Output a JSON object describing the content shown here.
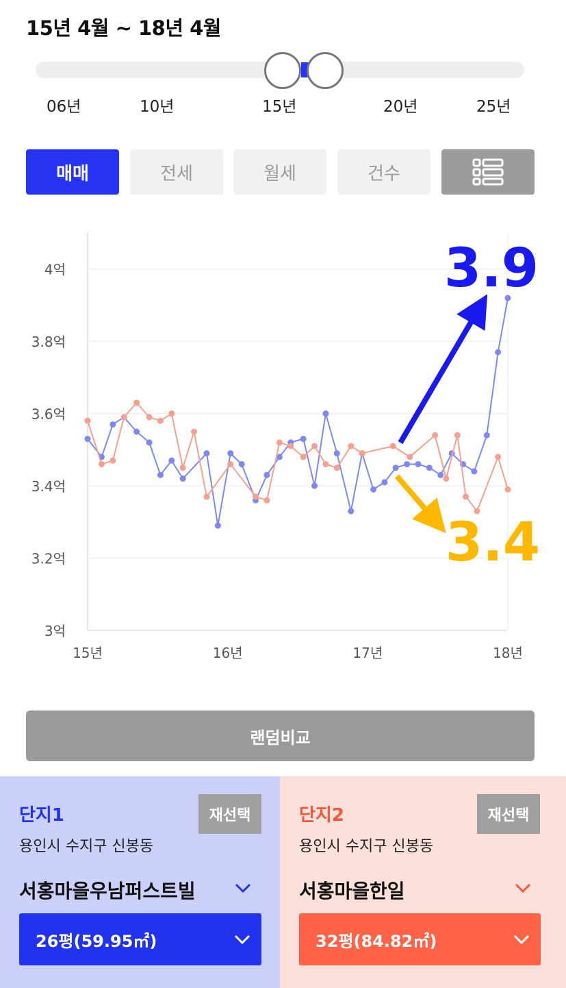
{
  "range": {
    "title": "15년 4월 ~ 18년 4월",
    "ticks": [
      "06년",
      "10년",
      "15년",
      "20년",
      "25년"
    ]
  },
  "tabs": [
    {
      "label": "매매",
      "active": true
    },
    {
      "label": "전세",
      "active": false
    },
    {
      "label": "월세",
      "active": false
    },
    {
      "label": "건수",
      "active": false
    }
  ],
  "list_icon": "list-icon",
  "chart_data": {
    "type": "line",
    "y_ticks": [
      "3억",
      "3.2억",
      "3.4억",
      "3.6억",
      "3.8억",
      "4억"
    ],
    "y_tick_values": [
      3.0,
      3.2,
      3.4,
      3.6,
      3.8,
      4.0
    ],
    "x_ticks": [
      "15년",
      "16년",
      "17년",
      "18년"
    ],
    "x_tick_values": [
      2015,
      2016,
      2017,
      2018
    ],
    "ylim": [
      3.0,
      4.1
    ],
    "xlim": [
      2015,
      2018
    ],
    "grid": true,
    "series": [
      {
        "color": "#7f88f0",
        "values": [
          [
            2015.0,
            3.53
          ],
          [
            2015.1,
            3.48
          ],
          [
            2015.18,
            3.57
          ],
          [
            2015.26,
            3.59
          ],
          [
            2015.35,
            3.55
          ],
          [
            2015.44,
            3.52
          ],
          [
            2015.52,
            3.43
          ],
          [
            2015.6,
            3.47
          ],
          [
            2015.68,
            3.42
          ],
          [
            2015.85,
            3.49
          ],
          [
            2015.93,
            3.29
          ],
          [
            2016.02,
            3.49
          ],
          [
            2016.1,
            3.46
          ],
          [
            2016.2,
            3.36
          ],
          [
            2016.28,
            3.43
          ],
          [
            2016.37,
            3.48
          ],
          [
            2016.45,
            3.52
          ],
          [
            2016.54,
            3.53
          ],
          [
            2016.62,
            3.4
          ],
          [
            2016.7,
            3.6
          ],
          [
            2016.78,
            3.49
          ],
          [
            2016.88,
            3.33
          ],
          [
            2016.96,
            3.49
          ],
          [
            2017.04,
            3.39
          ],
          [
            2017.12,
            3.41
          ],
          [
            2017.2,
            3.45
          ],
          [
            2017.28,
            3.46
          ],
          [
            2017.36,
            3.46
          ],
          [
            2017.44,
            3.45
          ],
          [
            2017.52,
            3.43
          ],
          [
            2017.6,
            3.49
          ],
          [
            2017.68,
            3.46
          ],
          [
            2017.76,
            3.44
          ],
          [
            2017.85,
            3.54
          ],
          [
            2017.93,
            3.77
          ],
          [
            2018.0,
            3.92
          ]
        ]
      },
      {
        "color": "#f5a090",
        "values": [
          [
            2015.0,
            3.58
          ],
          [
            2015.1,
            3.46
          ],
          [
            2015.18,
            3.47
          ],
          [
            2015.26,
            3.59
          ],
          [
            2015.35,
            3.63
          ],
          [
            2015.44,
            3.59
          ],
          [
            2015.52,
            3.58
          ],
          [
            2015.6,
            3.6
          ],
          [
            2015.68,
            3.45
          ],
          [
            2015.76,
            3.55
          ],
          [
            2015.85,
            3.37
          ],
          [
            2016.02,
            3.46
          ],
          [
            2016.2,
            3.37
          ],
          [
            2016.28,
            3.36
          ],
          [
            2016.37,
            3.52
          ],
          [
            2016.45,
            3.51
          ],
          [
            2016.54,
            3.48
          ],
          [
            2016.62,
            3.51
          ],
          [
            2016.7,
            3.46
          ],
          [
            2016.78,
            3.45
          ],
          [
            2016.88,
            3.51
          ],
          [
            2016.96,
            3.49
          ],
          [
            2017.18,
            3.51
          ],
          [
            2017.3,
            3.48
          ],
          [
            2017.48,
            3.54
          ],
          [
            2017.56,
            3.42
          ],
          [
            2017.64,
            3.54
          ],
          [
            2017.7,
            3.37
          ],
          [
            2017.78,
            3.33
          ],
          [
            2017.93,
            3.48
          ],
          [
            2018.0,
            3.39
          ]
        ]
      }
    ],
    "annotations": [
      {
        "text": "3.9",
        "color": "#1a1aee"
      },
      {
        "text": "3.4",
        "color": "#ffb800"
      }
    ]
  },
  "random_button": "랜덤비교",
  "complex1": {
    "label": "단지1",
    "reselect": "재선택",
    "address": "용인시 수지구 신봉동",
    "name": "서홍마을우남퍼스트빌",
    "size": "26평(59.95㎡)"
  },
  "complex2": {
    "label": "단지2",
    "reselect": "재선택",
    "address": "용인시 수지구 신봉동",
    "name": "서홍마을한일",
    "size": "32평(84.82㎡)"
  }
}
